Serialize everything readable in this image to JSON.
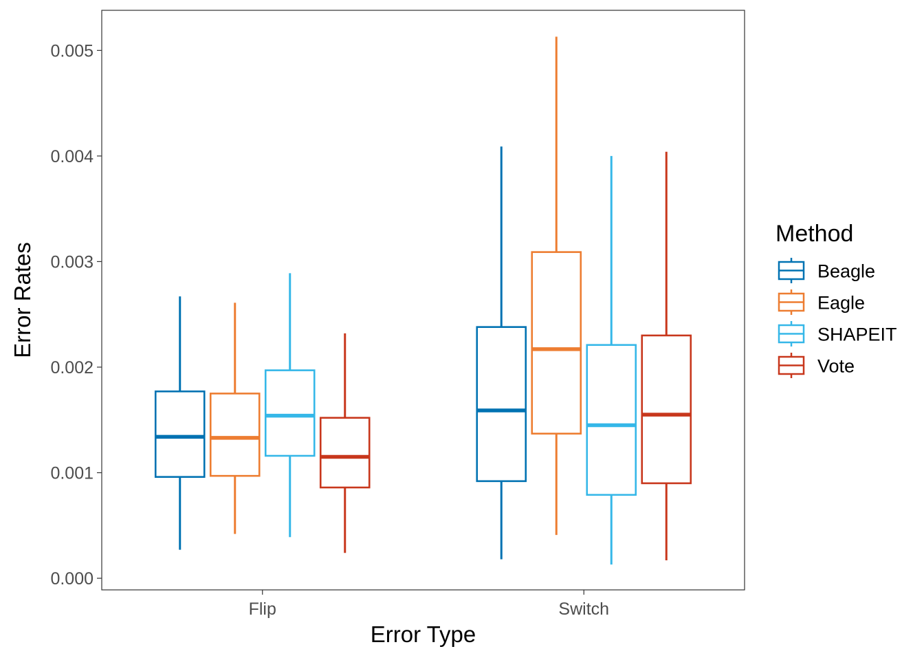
{
  "chart_data": {
    "type": "box",
    "xlabel": "Error Type",
    "ylabel": "Error Rates",
    "categories": [
      "Flip",
      "Switch"
    ],
    "ylim": [
      -0.00011,
      0.00538
    ],
    "yticks": [
      "0.000",
      "0.001",
      "0.002",
      "0.003",
      "0.004",
      "0.005"
    ],
    "ytick_values": [
      0.0,
      0.001,
      0.002,
      0.003,
      0.004,
      0.005
    ],
    "grid": false,
    "legend": {
      "title": "Method",
      "position": "right"
    },
    "series": [
      {
        "name": "Beagle",
        "color": "#0072B2",
        "boxes": [
          {
            "category": "Flip",
            "min": 0.00027,
            "q1": 0.00096,
            "median": 0.00134,
            "q3": 0.00177,
            "max": 0.00267
          },
          {
            "category": "Switch",
            "min": 0.00018,
            "q1": 0.00092,
            "median": 0.00159,
            "q3": 0.00238,
            "max": 0.00409
          }
        ]
      },
      {
        "name": "Eagle",
        "color": "#ED7D31",
        "boxes": [
          {
            "category": "Flip",
            "min": 0.00042,
            "q1": 0.00097,
            "median": 0.00133,
            "q3": 0.00175,
            "max": 0.00261
          },
          {
            "category": "Switch",
            "min": 0.00041,
            "q1": 0.00137,
            "median": 0.00217,
            "q3": 0.00309,
            "max": 0.00513
          }
        ]
      },
      {
        "name": "SHAPEIT",
        "color": "#35B7E8",
        "boxes": [
          {
            "category": "Flip",
            "min": 0.00039,
            "q1": 0.00116,
            "median": 0.00154,
            "q3": 0.00197,
            "max": 0.00289
          },
          {
            "category": "Switch",
            "min": 0.00013,
            "q1": 0.00079,
            "median": 0.00145,
            "q3": 0.00221,
            "max": 0.004
          }
        ]
      },
      {
        "name": "Vote",
        "color": "#C8371C",
        "boxes": [
          {
            "category": "Flip",
            "min": 0.00024,
            "q1": 0.00086,
            "median": 0.00115,
            "q3": 0.00152,
            "max": 0.00232
          },
          {
            "category": "Switch",
            "min": 0.00017,
            "q1": 0.0009,
            "median": 0.00155,
            "q3": 0.0023,
            "max": 0.00404
          }
        ]
      }
    ]
  }
}
